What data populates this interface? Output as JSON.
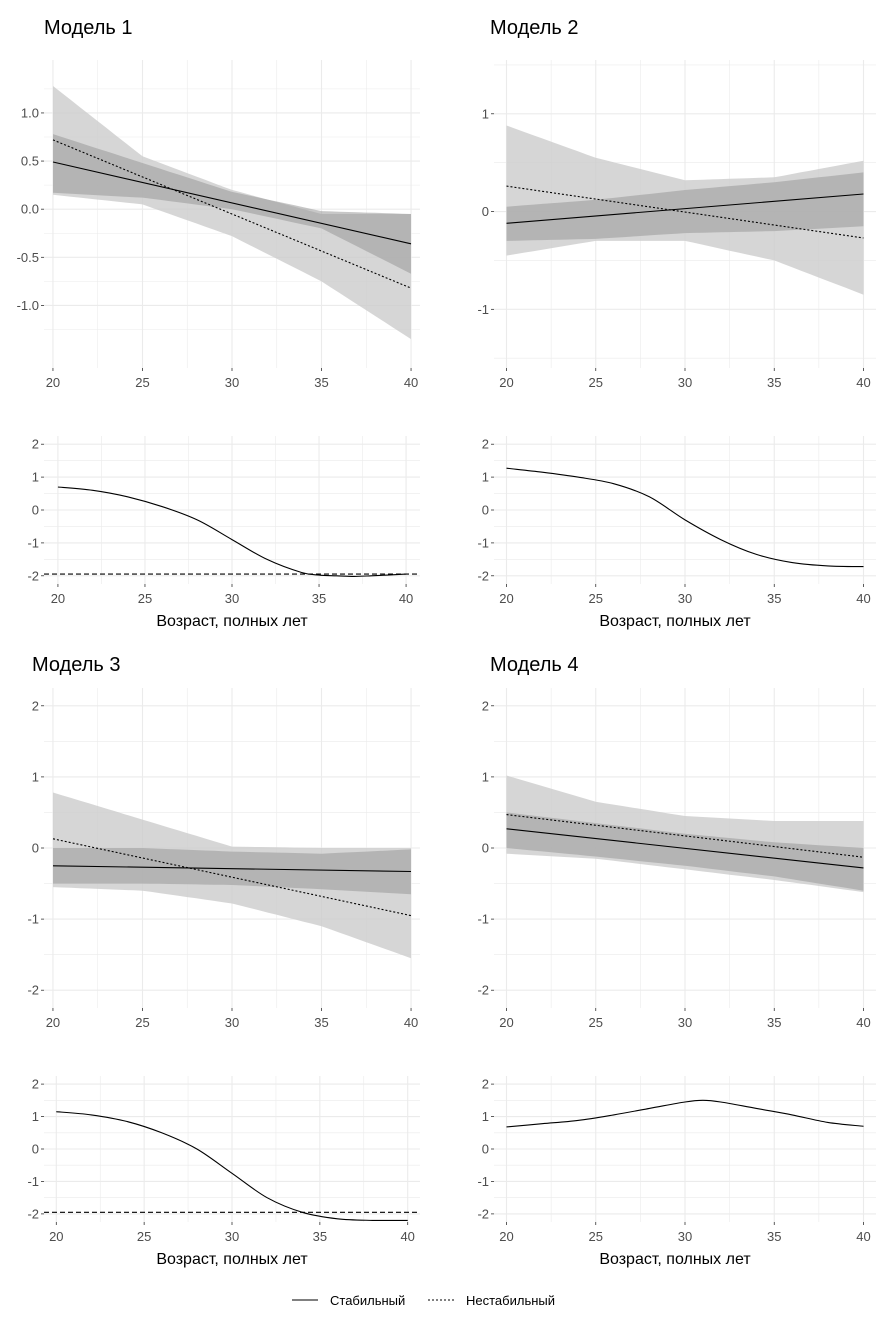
{
  "legend": {
    "position": "bottom",
    "items": [
      {
        "key": "stable",
        "label": "Стабильный",
        "linetype": "solid"
      },
      {
        "key": "unstable",
        "label": "Нестабильный",
        "linetype": "dotted"
      }
    ]
  },
  "colors": {
    "grid": "#ebebeb",
    "band_stable": "#999999",
    "band_unstable": "#cccccc",
    "line": "#000000",
    "tick_text": "#4d4d4d"
  },
  "chart_data": [
    {
      "model": "Модель 1",
      "type": "line",
      "title": "Модель 1",
      "xlabel": "",
      "x_ticks": [
        20,
        25,
        30,
        35,
        40
      ],
      "xlim": [
        19.5,
        40.5
      ],
      "y_ticks": [
        -1.0,
        -0.5,
        0.0,
        0.5,
        1.0
      ],
      "y_tick_labels": [
        "-1.0",
        "-0.5",
        "0.0",
        "0.5",
        "1.0"
      ],
      "ylim": [
        -1.65,
        1.55
      ],
      "grid": true,
      "series": [
        {
          "key": "stable",
          "x": [
            20,
            40
          ],
          "y": [
            0.49,
            -0.36
          ],
          "ci_x": [
            20,
            25,
            30,
            35,
            40
          ],
          "ci_lower": [
            0.17,
            0.12,
            0.0,
            -0.2,
            -0.67
          ],
          "ci_upper": [
            0.78,
            0.48,
            0.18,
            -0.02,
            -0.05
          ]
        },
        {
          "key": "unstable",
          "x": [
            20,
            40
          ],
          "y": [
            0.72,
            -0.82
          ],
          "ci_x": [
            20,
            25,
            30,
            35,
            40
          ],
          "ci_lower": [
            0.15,
            0.05,
            -0.28,
            -0.75,
            -1.35
          ],
          "ci_upper": [
            1.28,
            0.55,
            0.2,
            -0.05,
            -0.05
          ]
        }
      ]
    },
    {
      "model": "Модель 1",
      "type": "line",
      "title": "",
      "xlabel": "Возраст, полных лет",
      "x_ticks": [
        20,
        25,
        30,
        35,
        40
      ],
      "xlim": [
        19.2,
        40.8
      ],
      "y_ticks": [
        -2,
        -1,
        0,
        1,
        2
      ],
      "ylim": [
        -2.25,
        2.25
      ],
      "grid": true,
      "series": [
        {
          "key": "stable",
          "x": [
            20,
            22,
            24,
            26,
            28,
            30,
            32,
            34,
            35,
            36,
            37,
            38,
            40
          ],
          "y": [
            0.7,
            0.6,
            0.4,
            0.1,
            -0.3,
            -0.9,
            -1.5,
            -1.9,
            -1.98,
            -2.0,
            -2.02,
            -2.0,
            -1.95
          ]
        },
        {
          "key": "unstable",
          "x": [
            19.2,
            40.8
          ],
          "y": [
            -1.95,
            -1.95
          ]
        }
      ]
    },
    {
      "model": "Модель 2",
      "type": "line",
      "title": "Модель 2",
      "xlabel": "",
      "x_ticks": [
        20,
        25,
        30,
        35,
        40
      ],
      "xlim": [
        19.3,
        40.7
      ],
      "y_ticks": [
        -1,
        0,
        1
      ],
      "y_tick_labels": [
        "-1",
        "0",
        "1"
      ],
      "ylim": [
        -1.6,
        1.55
      ],
      "grid": true,
      "series": [
        {
          "key": "stable",
          "x": [
            20,
            40
          ],
          "y": [
            -0.12,
            0.18
          ],
          "ci_x": [
            20,
            25,
            30,
            35,
            40
          ],
          "ci_lower": [
            -0.3,
            -0.28,
            -0.22,
            -0.2,
            -0.15
          ],
          "ci_upper": [
            0.05,
            0.12,
            0.22,
            0.3,
            0.4
          ]
        },
        {
          "key": "unstable",
          "x": [
            20,
            40
          ],
          "y": [
            0.26,
            -0.27
          ],
          "ci_x": [
            20,
            25,
            30,
            35,
            40
          ],
          "ci_lower": [
            -0.45,
            -0.3,
            -0.3,
            -0.5,
            -0.85
          ],
          "ci_upper": [
            0.88,
            0.55,
            0.32,
            0.35,
            0.52
          ]
        }
      ]
    },
    {
      "model": "Модель 2",
      "type": "line",
      "title": "",
      "xlabel": "Возраст, полных лет",
      "x_ticks": [
        20,
        25,
        30,
        35,
        40
      ],
      "xlim": [
        19.3,
        40.7
      ],
      "y_ticks": [
        -2,
        -1,
        0,
        1,
        2
      ],
      "ylim": [
        -2.25,
        2.25
      ],
      "grid": true,
      "series": [
        {
          "key": "stable",
          "x": [
            20,
            22,
            24,
            26,
            28,
            30,
            32,
            34,
            36,
            38,
            40
          ],
          "y": [
            1.27,
            1.15,
            1.0,
            0.8,
            0.4,
            -0.3,
            -0.9,
            -1.35,
            -1.6,
            -1.7,
            -1.72
          ]
        }
      ]
    },
    {
      "model": "Модель 3",
      "type": "line",
      "title": "Модель 3",
      "xlabel": "",
      "x_ticks": [
        20,
        25,
        30,
        35,
        40
      ],
      "xlim": [
        19.5,
        40.5
      ],
      "y_ticks": [
        -2,
        -1,
        0,
        1,
        2
      ],
      "ylim": [
        -2.25,
        2.25
      ],
      "grid": true,
      "series": [
        {
          "key": "stable",
          "x": [
            20,
            40
          ],
          "y": [
            -0.25,
            -0.33
          ],
          "ci_x": [
            20,
            25,
            30,
            35,
            40
          ],
          "ci_lower": [
            -0.5,
            -0.5,
            -0.52,
            -0.58,
            -0.65
          ],
          "ci_upper": [
            0.0,
            0.0,
            -0.05,
            -0.08,
            -0.02
          ]
        },
        {
          "key": "unstable",
          "x": [
            20,
            40
          ],
          "y": [
            0.13,
            -0.95
          ],
          "ci_x": [
            20,
            25,
            30,
            35,
            40
          ],
          "ci_lower": [
            -0.55,
            -0.6,
            -0.78,
            -1.1,
            -1.55
          ],
          "ci_upper": [
            0.78,
            0.4,
            0.02,
            0.0,
            0.0
          ]
        }
      ]
    },
    {
      "model": "Модель 3",
      "type": "line",
      "title": "",
      "xlabel": "Возраст, полных лет",
      "x_ticks": [
        20,
        25,
        30,
        35,
        40
      ],
      "xlim": [
        19.3,
        40.7
      ],
      "y_ticks": [
        -2,
        -1,
        0,
        1,
        2
      ],
      "ylim": [
        -2.25,
        2.25
      ],
      "grid": true,
      "series": [
        {
          "key": "stable",
          "x": [
            20,
            22,
            24,
            26,
            28,
            30,
            32,
            34,
            36,
            38,
            40
          ],
          "y": [
            1.15,
            1.05,
            0.85,
            0.5,
            0.0,
            -0.75,
            -1.5,
            -1.95,
            -2.15,
            -2.2,
            -2.2
          ]
        },
        {
          "key": "unstable",
          "x": [
            19.3,
            40.7
          ],
          "y": [
            -1.95,
            -1.95
          ]
        }
      ]
    },
    {
      "model": "Модель 4",
      "type": "line",
      "title": "Модель 4",
      "xlabel": "",
      "x_ticks": [
        20,
        25,
        30,
        35,
        40
      ],
      "xlim": [
        19.3,
        40.7
      ],
      "y_ticks": [
        -2,
        -1,
        0,
        1,
        2
      ],
      "ylim": [
        -2.25,
        2.25
      ],
      "grid": true,
      "series": [
        {
          "key": "stable",
          "x": [
            20,
            40
          ],
          "y": [
            0.27,
            -0.28
          ],
          "ci_x": [
            20,
            25,
            30,
            35,
            40
          ],
          "ci_lower": [
            0.0,
            -0.12,
            -0.25,
            -0.4,
            -0.6
          ],
          "ci_upper": [
            0.5,
            0.35,
            0.2,
            0.08,
            0.0
          ]
        },
        {
          "key": "unstable",
          "x": [
            20,
            40
          ],
          "y": [
            0.47,
            -0.13
          ],
          "ci_x": [
            20,
            25,
            30,
            35,
            40
          ],
          "ci_lower": [
            -0.08,
            -0.15,
            -0.3,
            -0.45,
            -0.62
          ],
          "ci_upper": [
            1.02,
            0.65,
            0.45,
            0.38,
            0.38
          ]
        }
      ]
    },
    {
      "model": "Модель 4",
      "type": "line",
      "title": "",
      "xlabel": "Возраст, полных лет",
      "x_ticks": [
        20,
        25,
        30,
        35,
        40
      ],
      "xlim": [
        19.3,
        40.7
      ],
      "y_ticks": [
        -2,
        -1,
        0,
        1,
        2
      ],
      "ylim": [
        -2.25,
        2.25
      ],
      "grid": true,
      "series": [
        {
          "key": "stable",
          "x": [
            20,
            22,
            24,
            26,
            28,
            30,
            31,
            32,
            34,
            36,
            38,
            40
          ],
          "y": [
            0.68,
            0.78,
            0.88,
            1.05,
            1.25,
            1.45,
            1.5,
            1.45,
            1.25,
            1.05,
            0.82,
            0.7
          ]
        }
      ]
    }
  ]
}
